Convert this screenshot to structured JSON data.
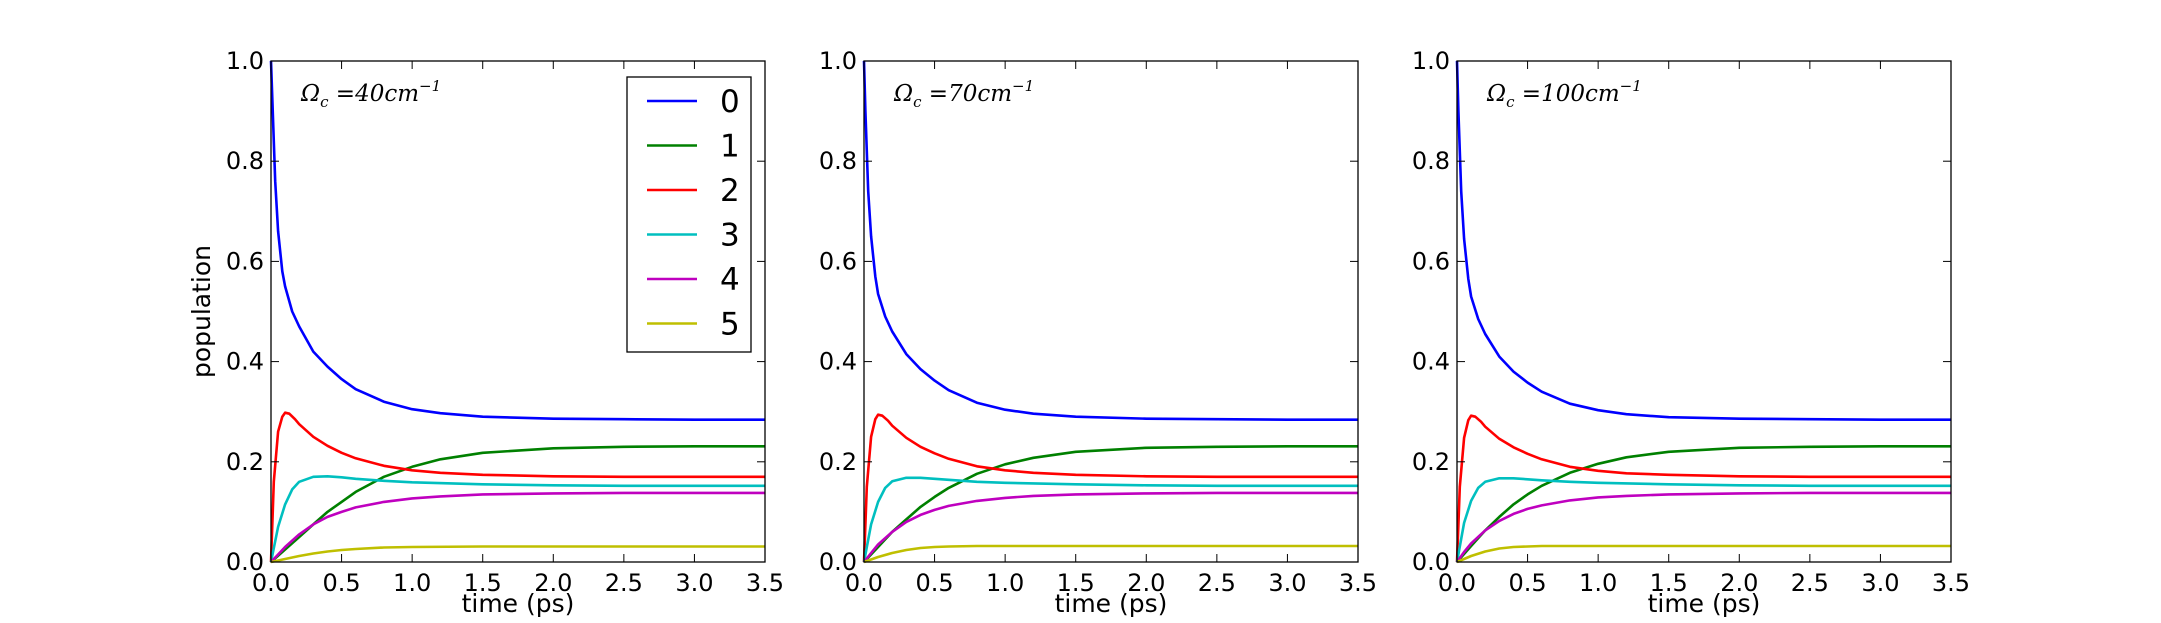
{
  "chart_data": [
    {
      "type": "line",
      "annotation": {
        "symbol": "Ω",
        "subscript": "c",
        "text": " =40cm",
        "superscript": "−1"
      },
      "xlabel": "time (ps)",
      "ylabel": "population",
      "xlim": [
        0,
        3.5
      ],
      "ylim": [
        0,
        1.0
      ],
      "xticks": [
        "0.0",
        "0.5",
        "1.0",
        "1.5",
        "2.0",
        "2.5",
        "3.0",
        "3.5"
      ],
      "yticks": [
        "0.0",
        "0.2",
        "0.4",
        "0.6",
        "0.8",
        "1.0"
      ],
      "legend": {
        "placement": "top-right",
        "entries": [
          "0",
          "1",
          "2",
          "3",
          "4",
          "5"
        ]
      },
      "series": [
        {
          "name": "0",
          "color": "#0000ff",
          "x": [
            0,
            0.01,
            0.03,
            0.05,
            0.08,
            0.1,
            0.15,
            0.2,
            0.3,
            0.4,
            0.5,
            0.6,
            0.8,
            1.0,
            1.2,
            1.5,
            2.0,
            2.5,
            3.0,
            3.5
          ],
          "y": [
            1.0,
            0.92,
            0.76,
            0.66,
            0.58,
            0.55,
            0.5,
            0.47,
            0.42,
            0.39,
            0.365,
            0.345,
            0.32,
            0.305,
            0.297,
            0.29,
            0.286,
            0.285,
            0.284,
            0.284
          ]
        },
        {
          "name": "1",
          "color": "#008000",
          "x": [
            0,
            0.1,
            0.2,
            0.3,
            0.4,
            0.5,
            0.6,
            0.8,
            1.0,
            1.2,
            1.5,
            2.0,
            2.5,
            3.0,
            3.5
          ],
          "y": [
            0.0,
            0.025,
            0.05,
            0.075,
            0.1,
            0.12,
            0.14,
            0.17,
            0.19,
            0.205,
            0.218,
            0.227,
            0.23,
            0.231,
            0.231
          ]
        },
        {
          "name": "2",
          "color": "#ff0000",
          "x": [
            0,
            0.02,
            0.05,
            0.08,
            0.1,
            0.13,
            0.17,
            0.2,
            0.3,
            0.4,
            0.5,
            0.6,
            0.8,
            1.0,
            1.2,
            1.5,
            2.0,
            2.5,
            3.0,
            3.5
          ],
          "y": [
            0.0,
            0.16,
            0.26,
            0.29,
            0.298,
            0.296,
            0.285,
            0.275,
            0.25,
            0.232,
            0.218,
            0.207,
            0.192,
            0.183,
            0.178,
            0.174,
            0.171,
            0.17,
            0.17,
            0.17
          ]
        },
        {
          "name": "3",
          "color": "#00bfbf",
          "x": [
            0,
            0.05,
            0.1,
            0.15,
            0.2,
            0.3,
            0.4,
            0.5,
            0.6,
            0.8,
            1.0,
            1.5,
            2.0,
            2.5,
            3.0,
            3.5
          ],
          "y": [
            0.0,
            0.07,
            0.115,
            0.145,
            0.16,
            0.17,
            0.171,
            0.169,
            0.166,
            0.162,
            0.159,
            0.155,
            0.153,
            0.152,
            0.152,
            0.152
          ]
        },
        {
          "name": "4",
          "color": "#bf00bf",
          "x": [
            0,
            0.05,
            0.1,
            0.2,
            0.3,
            0.4,
            0.5,
            0.6,
            0.8,
            1.0,
            1.2,
            1.5,
            2.0,
            2.5,
            3.0,
            3.5
          ],
          "y": [
            0.0,
            0.015,
            0.03,
            0.055,
            0.075,
            0.09,
            0.1,
            0.109,
            0.12,
            0.127,
            0.131,
            0.135,
            0.137,
            0.138,
            0.138,
            0.138
          ]
        },
        {
          "name": "5",
          "color": "#bfbf00",
          "x": [
            0,
            0.1,
            0.2,
            0.3,
            0.4,
            0.5,
            0.6,
            0.8,
            1.0,
            1.5,
            2.0,
            2.5,
            3.0,
            3.5
          ],
          "y": [
            0.0,
            0.006,
            0.012,
            0.017,
            0.021,
            0.024,
            0.026,
            0.029,
            0.03,
            0.031,
            0.031,
            0.031,
            0.031,
            0.031
          ]
        }
      ]
    },
    {
      "type": "line",
      "annotation": {
        "symbol": "Ω",
        "subscript": "c",
        "text": " =70cm",
        "superscript": "−1"
      },
      "xlabel": "time (ps)",
      "ylabel": "",
      "xlim": [
        0,
        3.5
      ],
      "ylim": [
        0,
        1.0
      ],
      "xticks": [
        "0.0",
        "0.5",
        "1.0",
        "1.5",
        "2.0",
        "2.5",
        "3.0",
        "3.5"
      ],
      "yticks": [
        "0.0",
        "0.2",
        "0.4",
        "0.6",
        "0.8",
        "1.0"
      ],
      "legend": null,
      "series": [
        {
          "name": "0",
          "color": "#0000ff",
          "x": [
            0,
            0.01,
            0.03,
            0.05,
            0.08,
            0.1,
            0.15,
            0.2,
            0.3,
            0.4,
            0.5,
            0.6,
            0.8,
            1.0,
            1.2,
            1.5,
            2.0,
            2.5,
            3.0,
            3.5
          ],
          "y": [
            1.0,
            0.9,
            0.74,
            0.65,
            0.57,
            0.535,
            0.49,
            0.46,
            0.415,
            0.385,
            0.362,
            0.343,
            0.318,
            0.304,
            0.296,
            0.29,
            0.286,
            0.285,
            0.284,
            0.284
          ]
        },
        {
          "name": "1",
          "color": "#008000",
          "x": [
            0,
            0.1,
            0.2,
            0.3,
            0.4,
            0.5,
            0.6,
            0.8,
            1.0,
            1.2,
            1.5,
            2.0,
            2.5,
            3.0,
            3.5
          ],
          "y": [
            0.0,
            0.03,
            0.06,
            0.085,
            0.11,
            0.13,
            0.148,
            0.176,
            0.195,
            0.208,
            0.22,
            0.228,
            0.23,
            0.231,
            0.231
          ]
        },
        {
          "name": "2",
          "color": "#ff0000",
          "x": [
            0,
            0.02,
            0.05,
            0.08,
            0.1,
            0.13,
            0.17,
            0.2,
            0.3,
            0.4,
            0.5,
            0.6,
            0.8,
            1.0,
            1.2,
            1.5,
            2.0,
            2.5,
            3.0,
            3.5
          ],
          "y": [
            0.0,
            0.15,
            0.25,
            0.285,
            0.294,
            0.292,
            0.282,
            0.272,
            0.248,
            0.23,
            0.217,
            0.206,
            0.191,
            0.183,
            0.178,
            0.174,
            0.171,
            0.17,
            0.17,
            0.17
          ]
        },
        {
          "name": "3",
          "color": "#00bfbf",
          "x": [
            0,
            0.05,
            0.1,
            0.15,
            0.2,
            0.3,
            0.4,
            0.5,
            0.6,
            0.8,
            1.0,
            1.5,
            2.0,
            2.5,
            3.0,
            3.5
          ],
          "y": [
            0.0,
            0.075,
            0.12,
            0.148,
            0.161,
            0.168,
            0.168,
            0.166,
            0.164,
            0.16,
            0.158,
            0.155,
            0.153,
            0.152,
            0.152,
            0.152
          ]
        },
        {
          "name": "4",
          "color": "#bf00bf",
          "x": [
            0,
            0.05,
            0.1,
            0.2,
            0.3,
            0.4,
            0.5,
            0.6,
            0.8,
            1.0,
            1.2,
            1.5,
            2.0,
            2.5,
            3.0,
            3.5
          ],
          "y": [
            0.0,
            0.018,
            0.035,
            0.06,
            0.08,
            0.094,
            0.104,
            0.112,
            0.122,
            0.128,
            0.132,
            0.135,
            0.137,
            0.138,
            0.138,
            0.138
          ]
        },
        {
          "name": "5",
          "color": "#bfbf00",
          "x": [
            0,
            0.1,
            0.2,
            0.3,
            0.4,
            0.5,
            0.6,
            0.8,
            1.0,
            1.5,
            2.0,
            2.5,
            3.0,
            3.5
          ],
          "y": [
            0.0,
            0.01,
            0.018,
            0.024,
            0.028,
            0.03,
            0.031,
            0.032,
            0.032,
            0.032,
            0.032,
            0.032,
            0.032,
            0.032
          ]
        }
      ]
    },
    {
      "type": "line",
      "annotation": {
        "symbol": "Ω",
        "subscript": "c",
        "text": " =100cm",
        "superscript": "−1"
      },
      "xlabel": "time (ps)",
      "ylabel": "",
      "xlim": [
        0,
        3.5
      ],
      "ylim": [
        0,
        1.0
      ],
      "xticks": [
        "0.0",
        "0.5",
        "1.0",
        "1.5",
        "2.0",
        "2.5",
        "3.0",
        "3.5"
      ],
      "yticks": [
        "0.0",
        "0.2",
        "0.4",
        "0.6",
        "0.8",
        "1.0"
      ],
      "legend": null,
      "series": [
        {
          "name": "0",
          "color": "#0000ff",
          "x": [
            0,
            0.01,
            0.03,
            0.05,
            0.08,
            0.1,
            0.15,
            0.2,
            0.3,
            0.4,
            0.5,
            0.6,
            0.8,
            1.0,
            1.2,
            1.5,
            2.0,
            2.5,
            3.0,
            3.5
          ],
          "y": [
            1.0,
            0.9,
            0.74,
            0.645,
            0.565,
            0.53,
            0.485,
            0.455,
            0.41,
            0.38,
            0.358,
            0.34,
            0.316,
            0.303,
            0.295,
            0.289,
            0.286,
            0.285,
            0.284,
            0.284
          ]
        },
        {
          "name": "1",
          "color": "#008000",
          "x": [
            0,
            0.1,
            0.2,
            0.3,
            0.4,
            0.5,
            0.6,
            0.8,
            1.0,
            1.2,
            1.5,
            2.0,
            2.5,
            3.0,
            3.5
          ],
          "y": [
            0.0,
            0.032,
            0.063,
            0.09,
            0.115,
            0.135,
            0.152,
            0.178,
            0.196,
            0.209,
            0.22,
            0.228,
            0.23,
            0.231,
            0.231
          ]
        },
        {
          "name": "2",
          "color": "#ff0000",
          "x": [
            0,
            0.02,
            0.05,
            0.08,
            0.1,
            0.13,
            0.17,
            0.2,
            0.3,
            0.4,
            0.5,
            0.6,
            0.8,
            1.0,
            1.2,
            1.5,
            2.0,
            2.5,
            3.0,
            3.5
          ],
          "y": [
            0.0,
            0.15,
            0.248,
            0.283,
            0.292,
            0.29,
            0.28,
            0.27,
            0.246,
            0.229,
            0.216,
            0.205,
            0.19,
            0.182,
            0.177,
            0.174,
            0.171,
            0.17,
            0.17,
            0.17
          ]
        },
        {
          "name": "3",
          "color": "#00bfbf",
          "x": [
            0,
            0.05,
            0.1,
            0.15,
            0.2,
            0.3,
            0.4,
            0.5,
            0.6,
            0.8,
            1.0,
            1.5,
            2.0,
            2.5,
            3.0,
            3.5
          ],
          "y": [
            0.0,
            0.078,
            0.122,
            0.148,
            0.16,
            0.167,
            0.167,
            0.165,
            0.163,
            0.16,
            0.158,
            0.155,
            0.153,
            0.152,
            0.152,
            0.152
          ]
        },
        {
          "name": "4",
          "color": "#bf00bf",
          "x": [
            0,
            0.05,
            0.1,
            0.2,
            0.3,
            0.4,
            0.5,
            0.6,
            0.8,
            1.0,
            1.2,
            1.5,
            2.0,
            2.5,
            3.0,
            3.5
          ],
          "y": [
            0.0,
            0.02,
            0.037,
            0.063,
            0.082,
            0.096,
            0.106,
            0.113,
            0.123,
            0.129,
            0.132,
            0.135,
            0.137,
            0.138,
            0.138,
            0.138
          ]
        },
        {
          "name": "5",
          "color": "#bfbf00",
          "x": [
            0,
            0.1,
            0.2,
            0.3,
            0.4,
            0.5,
            0.6,
            0.8,
            1.0,
            1.5,
            2.0,
            2.5,
            3.0,
            3.5
          ],
          "y": [
            0.0,
            0.012,
            0.021,
            0.027,
            0.03,
            0.031,
            0.032,
            0.032,
            0.032,
            0.032,
            0.032,
            0.032,
            0.032,
            0.032
          ]
        }
      ]
    }
  ]
}
